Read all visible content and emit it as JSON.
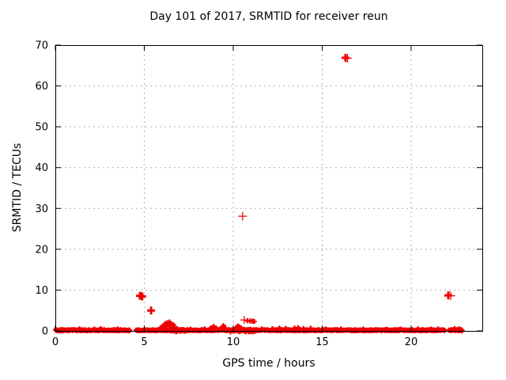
{
  "chart_data": {
    "type": "scatter",
    "title": "Day 101 of 2017, SRMTID for receiver reun",
    "xlabel": "GPS time / hours",
    "ylabel": "SRMTID / TECUs",
    "xlim": [
      0,
      24
    ],
    "ylim": [
      0,
      70
    ],
    "xticks": [
      0,
      5,
      10,
      15,
      20
    ],
    "yticks": [
      0,
      10,
      20,
      30,
      40,
      50,
      60,
      70
    ],
    "grid": true,
    "legend": "none",
    "marker": "plus",
    "colors": {
      "points": "#ee0000",
      "axis": "#000000",
      "grid": "#b0b0b0",
      "background": "#ffffff"
    },
    "series": [
      {
        "name": "SRMTID",
        "color": "#ee0000"
      }
    ],
    "baseline_band": {
      "description": "dense near-zero SRMTID values",
      "y_min": 0.0,
      "y_max": 0.35,
      "segments": [
        [
          0.0,
          4.22
        ],
        [
          4.53,
          16.28
        ],
        [
          16.34,
          21.91
        ],
        [
          22.12,
          22.89
        ]
      ],
      "dense_segments": [
        [
          6.1,
          7.35
        ],
        [
          9.5,
          11.3
        ]
      ]
    },
    "elevated_points": [
      [
        1.35,
        0.5
      ],
      [
        2.2,
        0.45
      ],
      [
        2.55,
        0.55
      ],
      [
        3.5,
        0.5
      ],
      [
        5.9,
        0.7
      ],
      [
        5.98,
        1.0
      ],
      [
        6.08,
        1.4
      ],
      [
        6.12,
        0.8
      ],
      [
        6.18,
        1.8
      ],
      [
        6.24,
        1.2
      ],
      [
        6.3,
        2.0
      ],
      [
        6.36,
        1.6
      ],
      [
        6.42,
        2.2
      ],
      [
        6.48,
        1.1
      ],
      [
        6.52,
        1.8
      ],
      [
        6.58,
        0.9
      ],
      [
        6.64,
        1.5
      ],
      [
        6.72,
        0.8
      ],
      [
        6.85,
        0.6
      ],
      [
        7.6,
        0.45
      ],
      [
        8.4,
        0.5
      ],
      [
        8.75,
        0.8
      ],
      [
        8.9,
        1.1
      ],
      [
        9.05,
        0.7
      ],
      [
        9.35,
        0.9
      ],
      [
        9.45,
        1.3
      ],
      [
        9.55,
        0.7
      ],
      [
        10.15,
        0.8
      ],
      [
        10.25,
        1.2
      ],
      [
        10.35,
        1.0
      ],
      [
        10.45,
        0.7
      ],
      [
        10.62,
        2.7,
        "thin"
      ],
      [
        10.8,
        2.5
      ],
      [
        10.95,
        2.45
      ],
      [
        11.08,
        2.4
      ],
      [
        11.18,
        2.3
      ],
      [
        11.6,
        0.5
      ],
      [
        12.2,
        0.55
      ],
      [
        12.6,
        0.7
      ],
      [
        12.95,
        0.6
      ],
      [
        13.45,
        0.7
      ],
      [
        13.65,
        0.8
      ],
      [
        13.95,
        0.6
      ],
      [
        14.35,
        0.65
      ],
      [
        15.2,
        0.45
      ],
      [
        16.05,
        0.5
      ],
      [
        17.3,
        0.45
      ],
      [
        18.6,
        0.4
      ],
      [
        19.4,
        0.45
      ],
      [
        20.4,
        0.5
      ],
      [
        21.1,
        0.45
      ],
      [
        21.5,
        0.5
      ],
      [
        22.45,
        0.55
      ],
      [
        22.7,
        0.5
      ]
    ],
    "outliers": [
      {
        "x": 4.76,
        "y": 8.6,
        "style": "bold"
      },
      {
        "x": 4.88,
        "y": 8.45,
        "style": "bold"
      },
      {
        "x": 5.38,
        "y": 5.0,
        "style": "bold"
      },
      {
        "x": 10.53,
        "y": 28.1,
        "style": "thin"
      },
      {
        "x": 16.31,
        "y": 66.9,
        "style": "bold"
      },
      {
        "x": 16.42,
        "y": 66.8,
        "style": "thin"
      },
      {
        "x": 22.09,
        "y": 8.7,
        "style": "bold"
      },
      {
        "x": 22.22,
        "y": 8.6,
        "style": "thin"
      }
    ]
  }
}
